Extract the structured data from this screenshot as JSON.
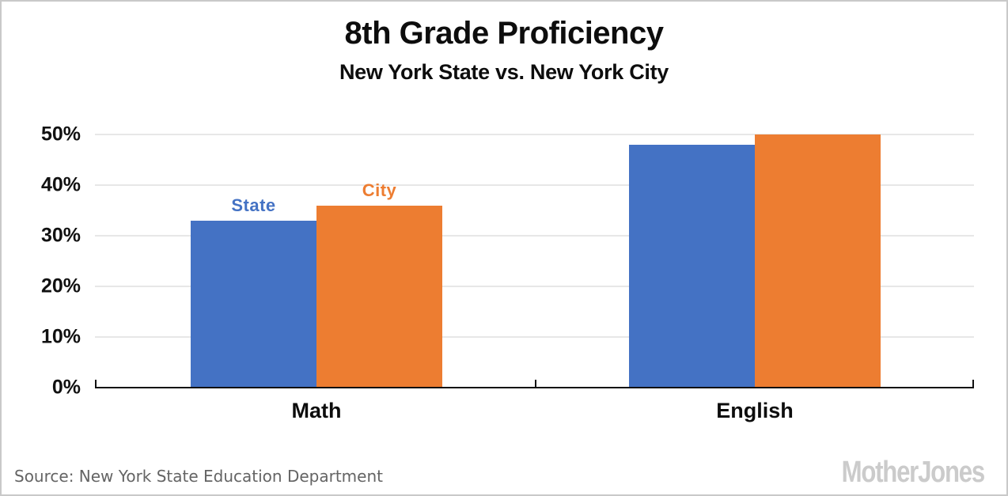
{
  "header": {
    "title": "8th Grade Proficiency",
    "subtitle": "New York State vs. New York City"
  },
  "footer": {
    "source": "Source: New York State Education Department",
    "logo": "MotherJones"
  },
  "colors": {
    "state_blue": "#4472C4",
    "city_orange": "#ED7D31",
    "gridline": "#e7e7e7",
    "axis": "#111111",
    "source_text": "#646464",
    "logo_gray": "#cbcbcb"
  },
  "chart_data": {
    "type": "bar",
    "categories": [
      "Math",
      "English"
    ],
    "series": [
      {
        "name": "State",
        "color": "#4472C4",
        "values": [
          33,
          48
        ]
      },
      {
        "name": "City",
        "color": "#ED7D31",
        "values": [
          36,
          50
        ]
      }
    ],
    "title": "8th Grade Proficiency",
    "subtitle": "New York State vs. New York City",
    "xlabel": "",
    "ylabel": "",
    "ylim": [
      0,
      50
    ],
    "ytick_step": 10,
    "ytick_suffix": "%",
    "grid": true,
    "legend_position": "labels-above-first-group-bars"
  }
}
